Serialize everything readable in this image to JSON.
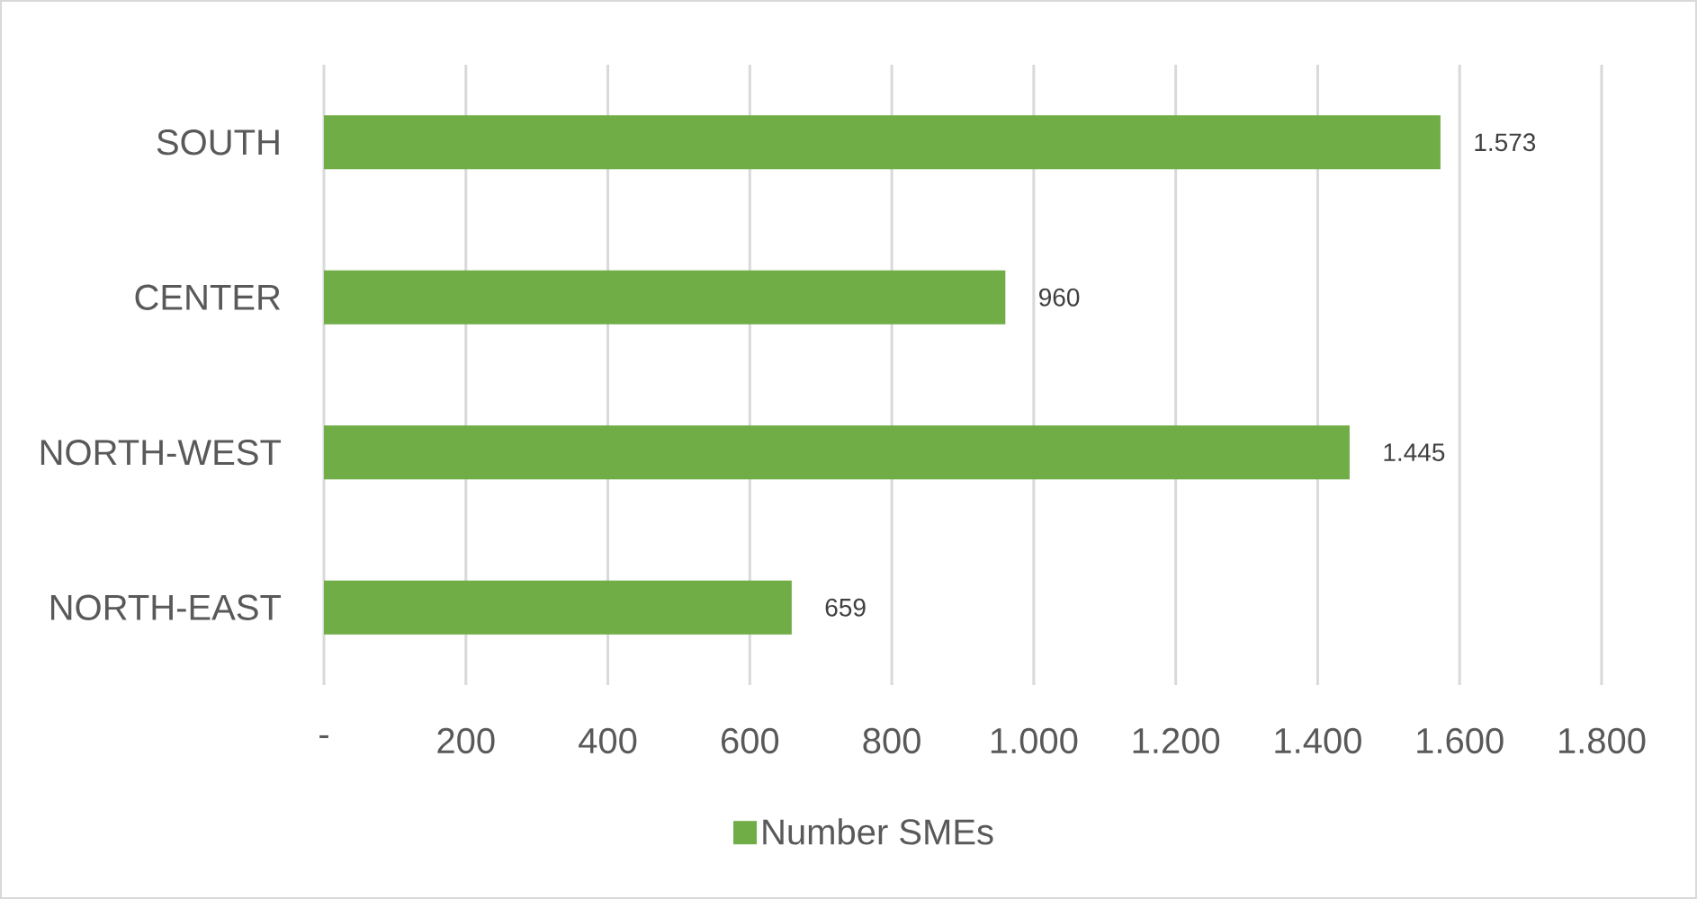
{
  "chart_data": {
    "type": "bar",
    "orientation": "horizontal",
    "categories": [
      "SOUTH",
      "CENTER",
      "NORTH-WEST",
      "NORTH-EAST"
    ],
    "series": [
      {
        "name": "Number SMEs",
        "color": "#70ad47",
        "values": [
          1573,
          960,
          1445,
          659
        ],
        "value_labels": [
          "1.573",
          "960",
          "1.445",
          "659"
        ]
      }
    ],
    "xlim": [
      0,
      1800
    ],
    "xticks": [
      {
        "value": 0,
        "label": "-"
      },
      200,
      400,
      600,
      800,
      {
        "value": 1000,
        "label": "1.000"
      },
      {
        "value": 1200,
        "label": "1.200"
      },
      {
        "value": 1400,
        "label": "1.400"
      },
      {
        "value": 1600,
        "label": "1.600"
      },
      {
        "value": 1800,
        "label": "1.800"
      }
    ],
    "grid": "x",
    "legend": "bottom"
  }
}
